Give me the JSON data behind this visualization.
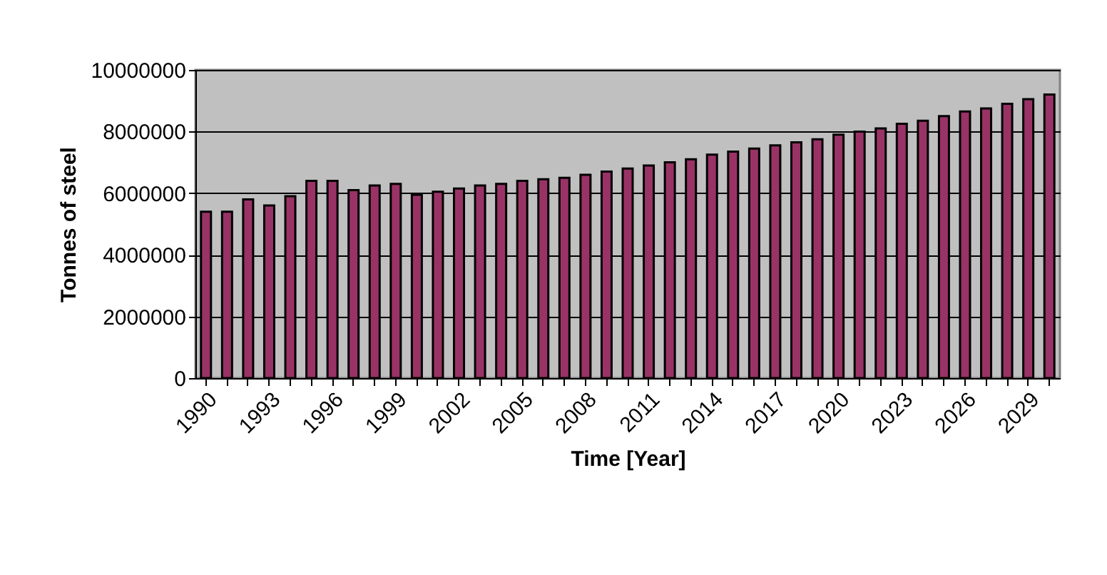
{
  "chart_data": {
    "type": "bar",
    "xlabel": "Time [Year]",
    "ylabel": "Tonnes of steel",
    "categories": [
      "1990",
      null,
      null,
      "1993",
      null,
      null,
      "1996",
      null,
      null,
      "1999",
      null,
      null,
      "2002",
      null,
      null,
      "2005",
      null,
      null,
      "2008",
      null,
      null,
      "2011",
      null,
      null,
      "2014",
      null,
      null,
      "2017",
      null,
      null,
      "2020",
      null,
      null,
      "2023",
      null,
      null,
      "2026",
      null,
      null,
      "2029",
      null
    ],
    "series": [
      {
        "color": "#993366",
        "values": [
          5400000,
          5400000,
          5800000,
          5600000,
          5900000,
          6400000,
          6400000,
          6100000,
          6250000,
          6300000,
          5950000,
          6050000,
          6150000,
          6250000,
          6300000,
          6400000,
          6450000,
          6500000,
          6600000,
          6700000,
          6800000,
          6900000,
          7000000,
          7100000,
          7250000,
          7350000,
          7450000,
          7550000,
          7650000,
          7750000,
          7900000,
          8000000,
          8100000,
          8250000,
          8350000,
          8500000,
          8650000,
          8750000,
          8900000,
          9050000,
          9200000
        ]
      }
    ],
    "ylim": [
      0,
      10000000
    ],
    "yticks": [
      0,
      2000000,
      4000000,
      6000000,
      8000000,
      10000000
    ],
    "grid": "y",
    "legend": false
  }
}
